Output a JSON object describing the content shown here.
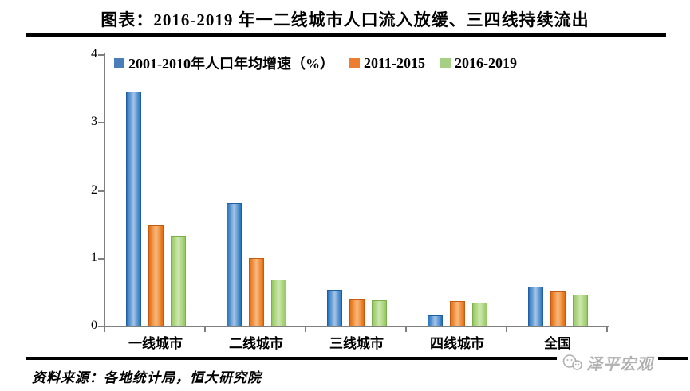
{
  "title": "图表：2016-2019 年一二线城市人口流入放缓、三四线持续流出",
  "source": "资料来源：各地统计局，恒大研究院",
  "watermark": "泽平宏观",
  "axis_color": "#7f7f7f",
  "chart_data": {
    "type": "bar",
    "title": "图表：2016-2019 年一二线城市人口流入放缓、三四线持续流出",
    "categories": [
      "一线城市",
      "二线城市",
      "三线城市",
      "四线城市",
      "全国"
    ],
    "series": [
      {
        "name": "2001-2010年人口年均增速（%）",
        "color": "#4a7ebb",
        "edge": "#2272c0",
        "center": "#a6c4e4",
        "border": "#1d5fa0",
        "values": [
          3.45,
          1.81,
          0.53,
          0.15,
          0.57
        ]
      },
      {
        "name": "2011-2015",
        "color": "#ed7d31",
        "edge": "#e56d0d",
        "center": "#f9ba80",
        "border": "#c55a11",
        "values": [
          1.48,
          1.0,
          0.39,
          0.36,
          0.5
        ]
      },
      {
        "name": "2016-2019",
        "color": "#a5d084",
        "edge": "#94c960",
        "center": "#cde7ae",
        "border": "#7cae4a",
        "values": [
          1.32,
          0.68,
          0.37,
          0.34,
          0.46
        ]
      }
    ],
    "xlabel": "",
    "ylabel": "",
    "ylim": [
      0,
      4
    ],
    "yticks": [
      0,
      1,
      2,
      3,
      4
    ],
    "legend_position": "top",
    "grid": false
  }
}
